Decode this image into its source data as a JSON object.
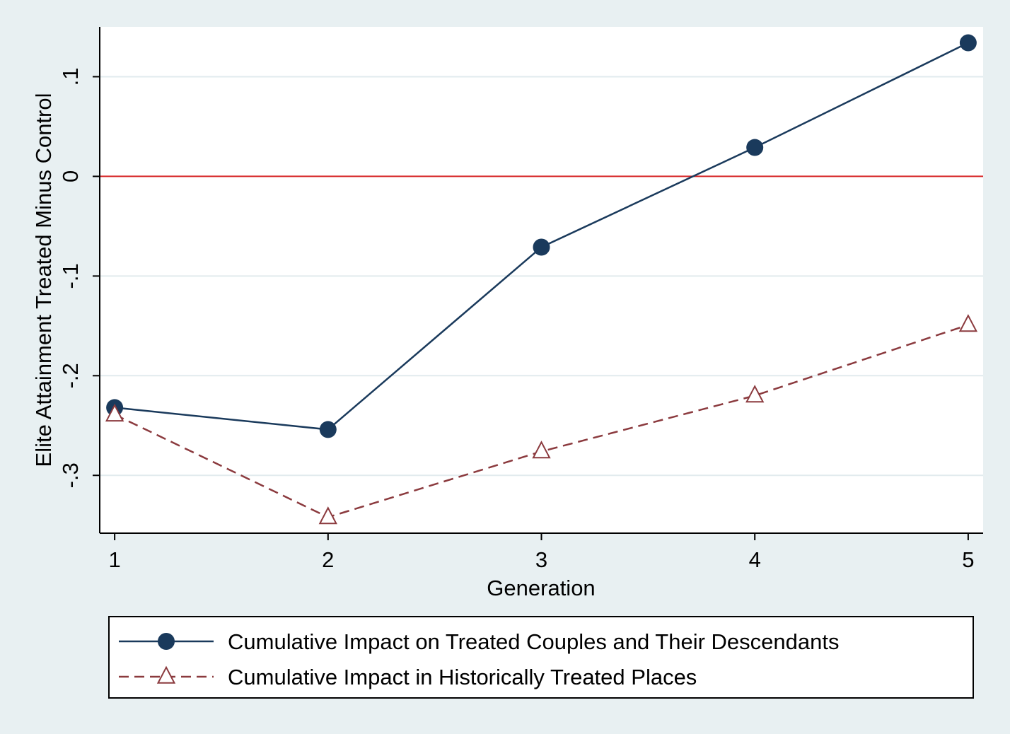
{
  "chart_data": {
    "type": "line",
    "xlabel": "Generation",
    "ylabel": "Elite Attainment Treated Minus Control",
    "x": [
      1,
      2,
      3,
      4,
      5
    ],
    "x_ticks": [
      "1",
      "2",
      "3",
      "4",
      "5"
    ],
    "y_ticks": [
      {
        "value": -0.3,
        "label": "-.3"
      },
      {
        "value": -0.2,
        "label": "-.2"
      },
      {
        "value": -0.1,
        "label": "-.1"
      },
      {
        "value": 0.0,
        "label": "0"
      },
      {
        "value": 0.1,
        "label": ".1"
      }
    ],
    "xlim": [
      0.93,
      5.07
    ],
    "ylim": [
      -0.358,
      0.15
    ],
    "grid": true,
    "reference_line": {
      "y": 0,
      "color": "#d62728"
    },
    "legend_position": "bottom",
    "series": [
      {
        "name": "Cumulative Impact on Treated Couples and Their Descendants",
        "values": [
          -0.232,
          -0.254,
          -0.071,
          0.029,
          0.134
        ],
        "color": "#1a3a5c",
        "line_style": "solid",
        "marker": "filled-circle"
      },
      {
        "name": "Cumulative Impact in Historically Treated Places",
        "values": [
          -0.239,
          -0.342,
          -0.276,
          -0.22,
          -0.149
        ],
        "color": "#8b3a3e",
        "line_style": "dashed",
        "marker": "hollow-triangle"
      }
    ]
  },
  "colors": {
    "background": "#e8f0f2",
    "plot_area": "#ffffff",
    "gridline": "#e2ebee"
  }
}
